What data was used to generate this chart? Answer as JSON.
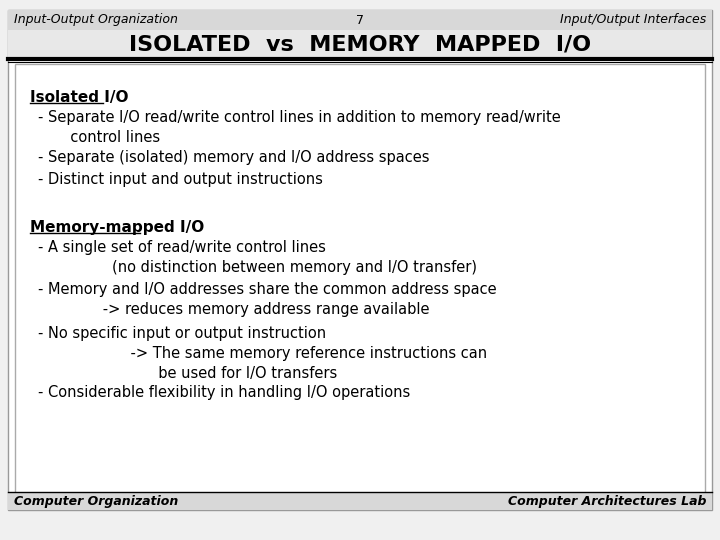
{
  "bg_color": "#f0f0f0",
  "slide_bg": "#ffffff",
  "header_left": "Input-Output Organization",
  "header_center": "7",
  "header_right": "Input/Output Interfaces",
  "title": "ISOLATED  vs  MEMORY  MAPPED  I/O",
  "footer_left": "Computer Organization",
  "footer_right": "Computer Architectures Lab",
  "section1_heading": "Isolated I/O",
  "section1_bullet1": "- Separate I/O read/write control lines in addition to memory read/write\n       control lines",
  "section1_bullet2": "- Separate (isolated) memory and I/O address spaces",
  "section1_bullet3": "- Distinct input and output instructions",
  "section2_heading": "Memory-mapped I/O",
  "section2_bullet1": "- A single set of read/write control lines\n                (no distinction between memory and I/O transfer)",
  "section2_bullet2": "- Memory and I/O addresses share the common address space\n              -> reduces memory address range available",
  "section2_bullet3": "- No specific input or output instruction\n                    -> The same memory reference instructions can\n                          be used for I/O transfers",
  "section2_bullet4": "- Considerable flexibility in handling I/O operations",
  "text_color": "#000000",
  "title_fontsize": 16,
  "header_fontsize": 9,
  "body_fontsize": 10.5,
  "heading_fontsize": 11,
  "footer_fontsize": 9
}
